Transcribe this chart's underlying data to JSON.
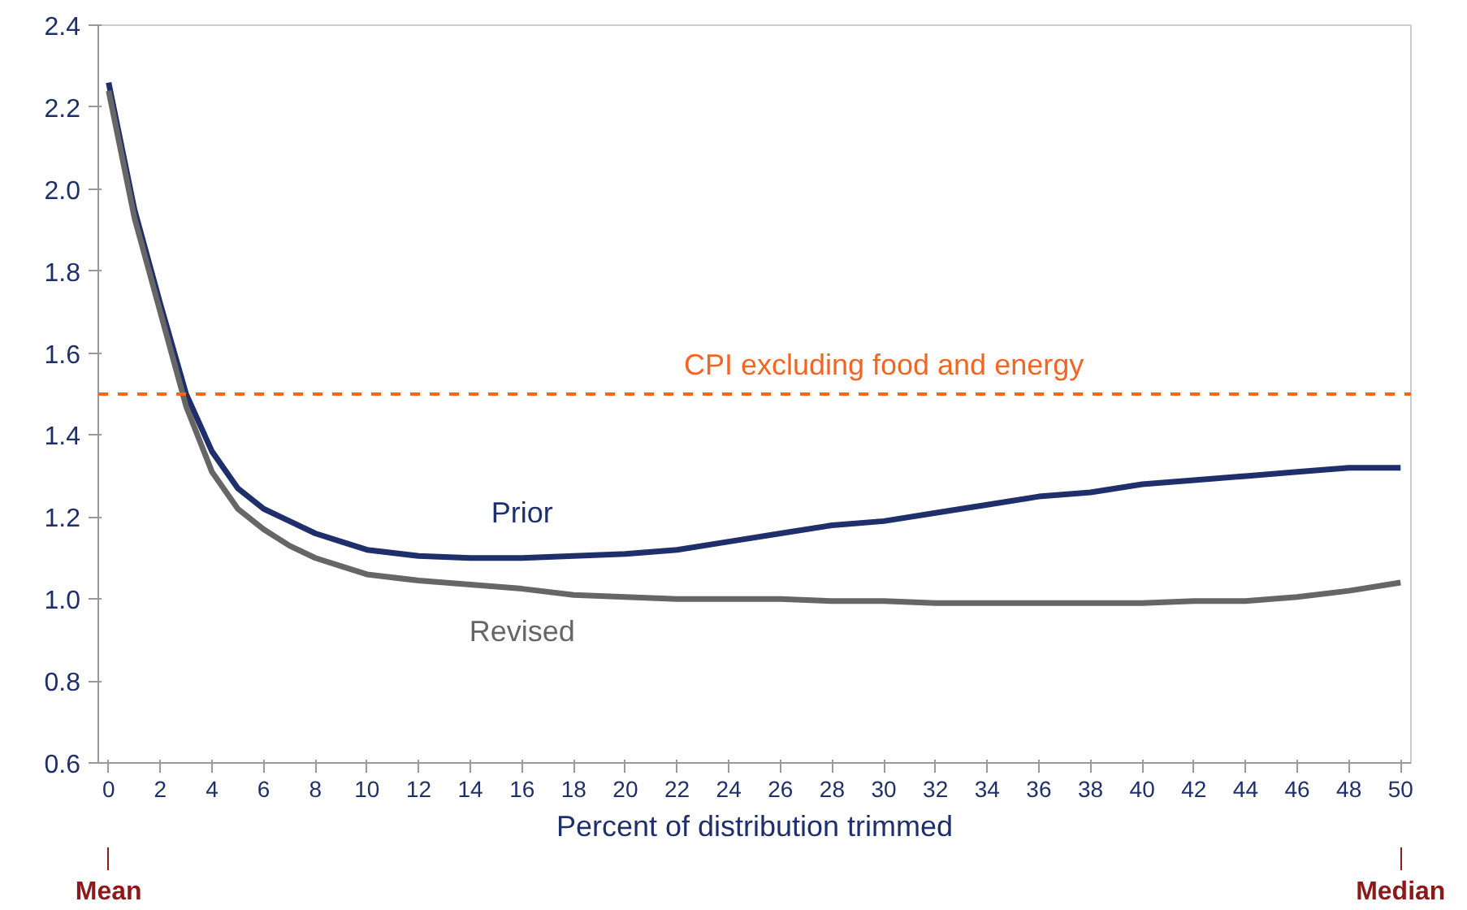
{
  "chart_data": {
    "type": "line",
    "xlabel": "Percent of distribution trimmed",
    "x": [
      0,
      1,
      2,
      3,
      4,
      5,
      6,
      7,
      8,
      9,
      10,
      12,
      14,
      16,
      18,
      20,
      22,
      24,
      26,
      28,
      30,
      32,
      34,
      36,
      38,
      40,
      42,
      44,
      46,
      48,
      50
    ],
    "series": [
      {
        "name": "Prior",
        "color": "#1f2f6b",
        "values": [
          2.26,
          1.95,
          1.72,
          1.5,
          1.36,
          1.27,
          1.22,
          1.19,
          1.16,
          1.14,
          1.12,
          1.105,
          1.1,
          1.1,
          1.105,
          1.11,
          1.12,
          1.14,
          1.16,
          1.18,
          1.19,
          1.21,
          1.23,
          1.25,
          1.26,
          1.28,
          1.29,
          1.3,
          1.31,
          1.32,
          1.32
        ]
      },
      {
        "name": "Revised",
        "color": "#666666",
        "values": [
          2.24,
          1.93,
          1.7,
          1.47,
          1.31,
          1.22,
          1.17,
          1.13,
          1.1,
          1.08,
          1.06,
          1.045,
          1.035,
          1.025,
          1.01,
          1.005,
          1.0,
          1.0,
          1.0,
          0.995,
          0.995,
          0.99,
          0.99,
          0.99,
          0.99,
          0.99,
          0.995,
          0.995,
          1.005,
          1.02,
          1.04
        ]
      }
    ],
    "ylim": [
      0.6,
      2.4
    ],
    "yticks": [
      {
        "value": 0.6,
        "label": "0.6"
      },
      {
        "value": 0.8,
        "label": "0.8"
      },
      {
        "value": 1.0,
        "label": "1.0"
      },
      {
        "value": 1.2,
        "label": "1.2"
      },
      {
        "value": 1.4,
        "label": "1.4"
      },
      {
        "value": 1.6,
        "label": "1.6"
      },
      {
        "value": 1.8,
        "label": "1.8"
      },
      {
        "value": 2.0,
        "label": "2.0"
      },
      {
        "value": 2.2,
        "label": "2.2"
      },
      {
        "value": 2.4,
        "label": "2.4"
      }
    ],
    "xlim": [
      -0.4,
      50.4
    ],
    "xticks": [
      0,
      2,
      4,
      6,
      8,
      10,
      12,
      14,
      16,
      18,
      20,
      22,
      24,
      26,
      28,
      30,
      32,
      34,
      36,
      38,
      40,
      42,
      44,
      46,
      48,
      50
    ],
    "ref_lines": [
      {
        "axis": "y",
        "value": 1.5,
        "label": "CPI excluding food and energy",
        "color": "#f26522",
        "line_style": "dashed"
      }
    ],
    "annotations": [
      {
        "text": "Mean",
        "x": 0
      },
      {
        "text": "Median",
        "x": 50
      }
    ],
    "grid": false,
    "marker": "none",
    "line_style": "solid"
  }
}
